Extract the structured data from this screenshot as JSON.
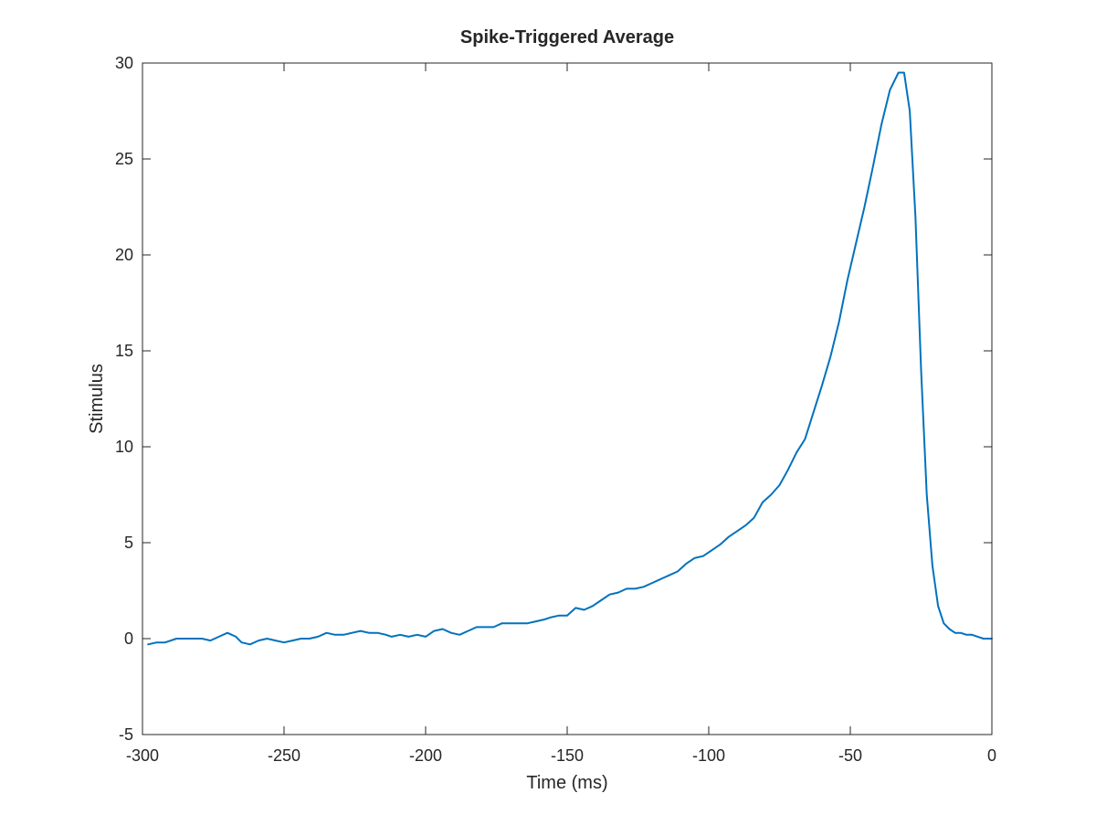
{
  "chart_data": {
    "type": "line",
    "title": "Spike-Triggered Average",
    "xlabel": "Time (ms)",
    "ylabel": "Stimulus",
    "xlim": [
      -300,
      0
    ],
    "ylim": [
      -5,
      30
    ],
    "xticks": [
      -300,
      -250,
      -200,
      -150,
      -100,
      -50,
      0
    ],
    "yticks": [
      -5,
      0,
      5,
      10,
      15,
      20,
      25,
      30
    ],
    "xtick_labels": [
      "-300",
      "-250",
      "-200",
      "-150",
      "-100",
      "-50",
      "0"
    ],
    "ytick_labels": [
      "-5",
      "0",
      "5",
      "10",
      "15",
      "20",
      "25",
      "30"
    ],
    "grid": false,
    "box": true,
    "line_color": "#0072BD",
    "series": [
      {
        "x": [
          -298,
          -295,
          -292,
          -288,
          -285,
          -282,
          -279,
          -276,
          -273,
          -270,
          -267,
          -265,
          -262,
          -259,
          -256,
          -253,
          -250,
          -247,
          -244,
          -241,
          -238,
          -235,
          -232,
          -229,
          -226,
          -223,
          -220,
          -217,
          -214,
          -212,
          -209,
          -206,
          -203,
          -200,
          -197,
          -194,
          -191,
          -188,
          -185,
          -182,
          -179,
          -176,
          -173,
          -170,
          -167,
          -164,
          -161,
          -158,
          -156,
          -153,
          -150,
          -147,
          -144,
          -141,
          -138,
          -135,
          -132,
          -129,
          -126,
          -123,
          -120,
          -117,
          -114,
          -111,
          -108,
          -105,
          -102,
          -99,
          -96,
          -93,
          -90,
          -87,
          -84,
          -81,
          -78,
          -75,
          -72,
          -69,
          -66,
          -63,
          -60,
          -57,
          -54,
          -51,
          -48,
          -45,
          -42,
          -39,
          -36,
          -33,
          -31,
          -29,
          -27,
          -25,
          -23,
          -21,
          -19,
          -17,
          -15,
          -13,
          -11,
          -9,
          -7,
          -5,
          -3,
          -1,
          0
        ],
        "y": [
          -0.3,
          -0.2,
          -0.2,
          0.0,
          0.0,
          0.0,
          0.0,
          -0.1,
          0.1,
          0.3,
          0.1,
          -0.2,
          -0.3,
          -0.1,
          0.0,
          -0.1,
          -0.2,
          -0.1,
          0.0,
          0.0,
          0.1,
          0.3,
          0.2,
          0.2,
          0.3,
          0.4,
          0.3,
          0.3,
          0.2,
          0.1,
          0.2,
          0.1,
          0.2,
          0.1,
          0.4,
          0.5,
          0.3,
          0.2,
          0.4,
          0.6,
          0.6,
          0.6,
          0.8,
          0.8,
          0.8,
          0.8,
          0.9,
          1.0,
          1.1,
          1.2,
          1.2,
          1.6,
          1.5,
          1.7,
          2.0,
          2.3,
          2.4,
          2.6,
          2.6,
          2.7,
          2.9,
          3.1,
          3.3,
          3.5,
          3.9,
          4.2,
          4.3,
          4.6,
          4.9,
          5.3,
          5.6,
          5.9,
          6.3,
          7.1,
          7.5,
          8.0,
          8.8,
          9.7,
          10.4,
          11.8,
          13.2,
          14.7,
          16.5,
          18.7,
          20.6,
          22.5,
          24.6,
          26.8,
          28.6,
          29.5,
          29.5,
          27.5,
          22.0,
          14.0,
          7.5,
          3.8,
          1.7,
          0.8,
          0.5,
          0.3,
          0.3,
          0.2,
          0.2,
          0.1,
          0.0,
          0.0,
          0.0
        ]
      }
    ]
  }
}
